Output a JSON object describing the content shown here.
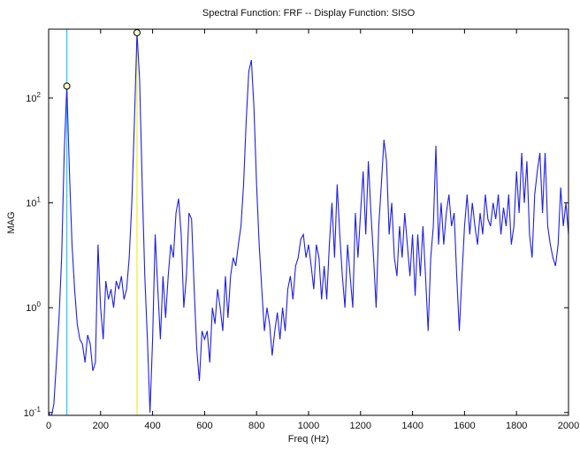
{
  "chart_data": {
    "type": "line",
    "title": "Spectral Function: FRF  --  Display Function: SISO",
    "x_label": "Freq (Hz)",
    "y_label": "MAG",
    "log_y": true,
    "color": "#1f1fe6",
    "xlim": [
      0,
      2000
    ],
    "ylim": [
      0.094,
      454
    ],
    "xticks": [
      0,
      200,
      400,
      600,
      800,
      1000,
      1200,
      1400,
      1600,
      1800,
      2000
    ],
    "yticks": [
      {
        "value": 0.1,
        "label": "10",
        "exponent": "-1"
      },
      {
        "value": 1,
        "label": "10",
        "exponent": "0"
      },
      {
        "value": 10,
        "label": "10",
        "exponent": "1"
      },
      {
        "value": 100,
        "label": "10",
        "exponent": "2"
      }
    ],
    "cursors": [
      {
        "x": 70,
        "color": "#22ccee"
      },
      {
        "x": 340,
        "color": "#eeee22"
      }
    ],
    "x": [
      0,
      10,
      20,
      30,
      40,
      50,
      60,
      70,
      80,
      90,
      100,
      110,
      120,
      130,
      140,
      150,
      160,
      170,
      180,
      190,
      200,
      210,
      220,
      230,
      240,
      250,
      260,
      270,
      280,
      290,
      300,
      310,
      320,
      330,
      340,
      350,
      360,
      370,
      380,
      390,
      400,
      410,
      420,
      430,
      440,
      450,
      460,
      470,
      480,
      490,
      500,
      510,
      520,
      530,
      540,
      550,
      560,
      570,
      580,
      590,
      600,
      610,
      620,
      630,
      640,
      650,
      660,
      670,
      680,
      690,
      700,
      710,
      720,
      730,
      740,
      750,
      760,
      770,
      780,
      790,
      800,
      810,
      820,
      830,
      840,
      850,
      860,
      870,
      880,
      890,
      900,
      910,
      920,
      930,
      940,
      950,
      960,
      970,
      980,
      990,
      1000,
      1010,
      1020,
      1030,
      1040,
      1050,
      1060,
      1070,
      1080,
      1090,
      1100,
      1110,
      1120,
      1130,
      1140,
      1150,
      1160,
      1170,
      1180,
      1190,
      1200,
      1210,
      1220,
      1230,
      1240,
      1250,
      1260,
      1270,
      1280,
      1290,
      1300,
      1310,
      1320,
      1330,
      1340,
      1350,
      1360,
      1370,
      1380,
      1390,
      1400,
      1410,
      1420,
      1430,
      1440,
      1450,
      1460,
      1470,
      1480,
      1490,
      1500,
      1510,
      1520,
      1530,
      1540,
      1550,
      1560,
      1570,
      1580,
      1590,
      1600,
      1610,
      1620,
      1630,
      1640,
      1650,
      1660,
      1670,
      1680,
      1690,
      1700,
      1710,
      1720,
      1730,
      1740,
      1750,
      1760,
      1770,
      1780,
      1790,
      1800,
      1810,
      1820,
      1830,
      1840,
      1850,
      1860,
      1870,
      1880,
      1890,
      1900,
      1910,
      1920,
      1930,
      1940,
      1950,
      1960,
      1970,
      1980,
      1990,
      2000
    ],
    "values": [
      0.1,
      0.09,
      0.12,
      0.3,
      0.8,
      3,
      30,
      130,
      20,
      4,
      1.5,
      0.7,
      0.5,
      0.45,
      0.3,
      0.55,
      0.45,
      0.25,
      0.3,
      4,
      1,
      0.5,
      1.8,
      1.2,
      1.5,
      1,
      1.8,
      1.5,
      2,
      1.2,
      1.5,
      3,
      10,
      60,
      420,
      150,
      15,
      2,
      0.5,
      0.1,
      0.5,
      5,
      1.5,
      0.5,
      2,
      0.8,
      2,
      4,
      3,
      8,
      11,
      5,
      1,
      2,
      8,
      7,
      1.5,
      0.4,
      0.2,
      0.6,
      0.5,
      0.6,
      0.3,
      1,
      0.7,
      1.5,
      1,
      0.6,
      2,
      0.8,
      2,
      3,
      2.5,
      4,
      6,
      15,
      60,
      180,
      230,
      80,
      15,
      4,
      1.5,
      0.6,
      1,
      0.7,
      0.35,
      0.6,
      0.9,
      0.5,
      1,
      0.6,
      1.5,
      2,
      1.2,
      2.5,
      3,
      4.5,
      5,
      3,
      4,
      2.5,
      1.5,
      4,
      3,
      1.2,
      2.5,
      1.2,
      4,
      10,
      3,
      15,
      5,
      2,
      1,
      4,
      2,
      1,
      8,
      3,
      8,
      20,
      5,
      25,
      8,
      3,
      1,
      6,
      15,
      40,
      25,
      5,
      10,
      3,
      2,
      6,
      3,
      8,
      4,
      2,
      5,
      1.3,
      5,
      2,
      6,
      2,
      0.6,
      3,
      6,
      35,
      4,
      10,
      4,
      8,
      12,
      6,
      8,
      2,
      0.6,
      2,
      6,
      12,
      5,
      10,
      6,
      4,
      8,
      5,
      12,
      7,
      6,
      10,
      7,
      12,
      5,
      9,
      6,
      12,
      4,
      6,
      20,
      8,
      30,
      10,
      25,
      5,
      3,
      12,
      20,
      30,
      8,
      30,
      6,
      4,
      3,
      2.5,
      4,
      14,
      6,
      10,
      5
    ]
  }
}
